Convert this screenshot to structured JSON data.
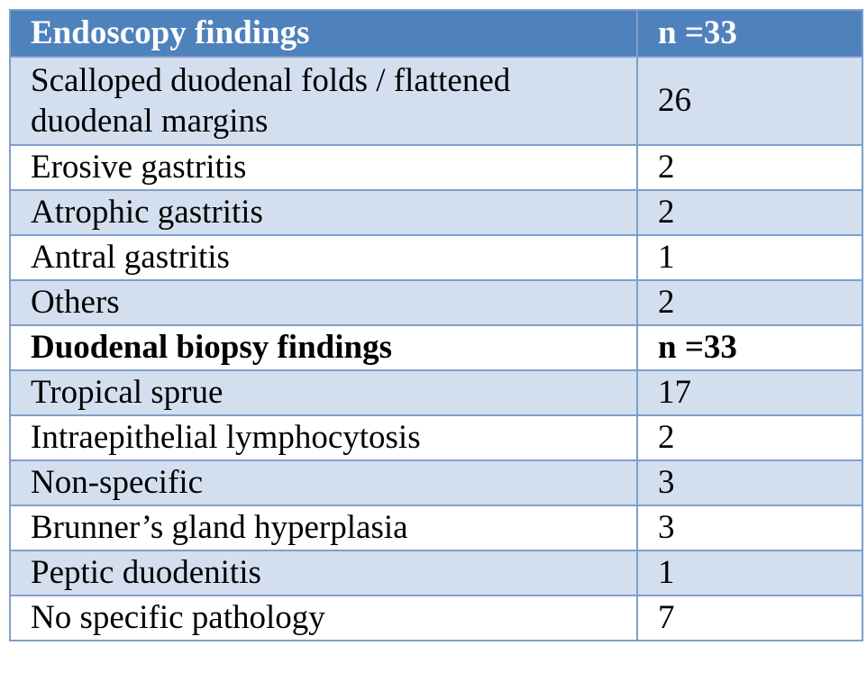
{
  "table": {
    "header": {
      "label": "Endoscopy findings",
      "value": "n =33"
    },
    "endoscopy_rows": [
      {
        "label": "Scalloped duodenal folds / flattened duodenal margins",
        "value": "26"
      },
      {
        "label": "Erosive gastritis",
        "value": "2"
      },
      {
        "label": "Atrophic gastritis",
        "value": "2"
      },
      {
        "label": "Antral gastritis",
        "value": "1"
      },
      {
        "label": "Others",
        "value": "2"
      }
    ],
    "biopsy_header": {
      "label": "Duodenal biopsy findings",
      "value": "n =33"
    },
    "biopsy_rows": [
      {
        "label": "Tropical sprue",
        "value": "17"
      },
      {
        "label": "Intraepithelial lymphocytosis",
        "value": "2"
      },
      {
        "label": "Non-specific",
        "value": "3"
      },
      {
        "label": "Brunner’s gland hyperplasia",
        "value": "3"
      },
      {
        "label": "Peptic duodenitis",
        "value": "1"
      },
      {
        "label": "No specific pathology",
        "value": "7"
      }
    ]
  },
  "colors": {
    "header_bg": "#4f81bd",
    "band_bg": "#d3dfee",
    "border": "#7f9fcb"
  }
}
